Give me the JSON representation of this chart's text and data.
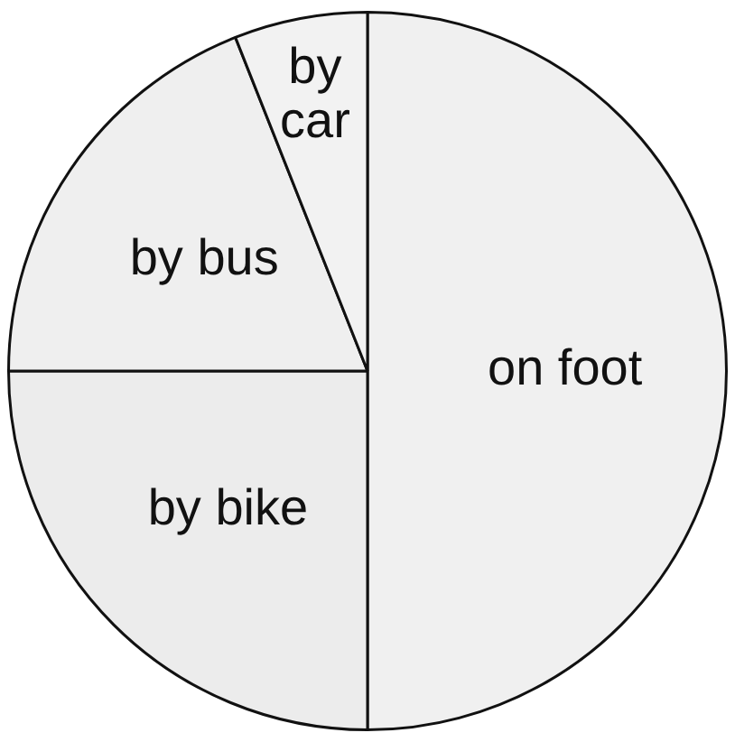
{
  "chart_data": {
    "type": "pie",
    "categories": [
      "on foot",
      "by bike",
      "by bus",
      "by car"
    ],
    "values": [
      50,
      25,
      19,
      6
    ],
    "colors": [
      "#f0f0f0",
      "#ececec",
      "#efefef",
      "#f2f2f2"
    ],
    "legend": false
  }
}
